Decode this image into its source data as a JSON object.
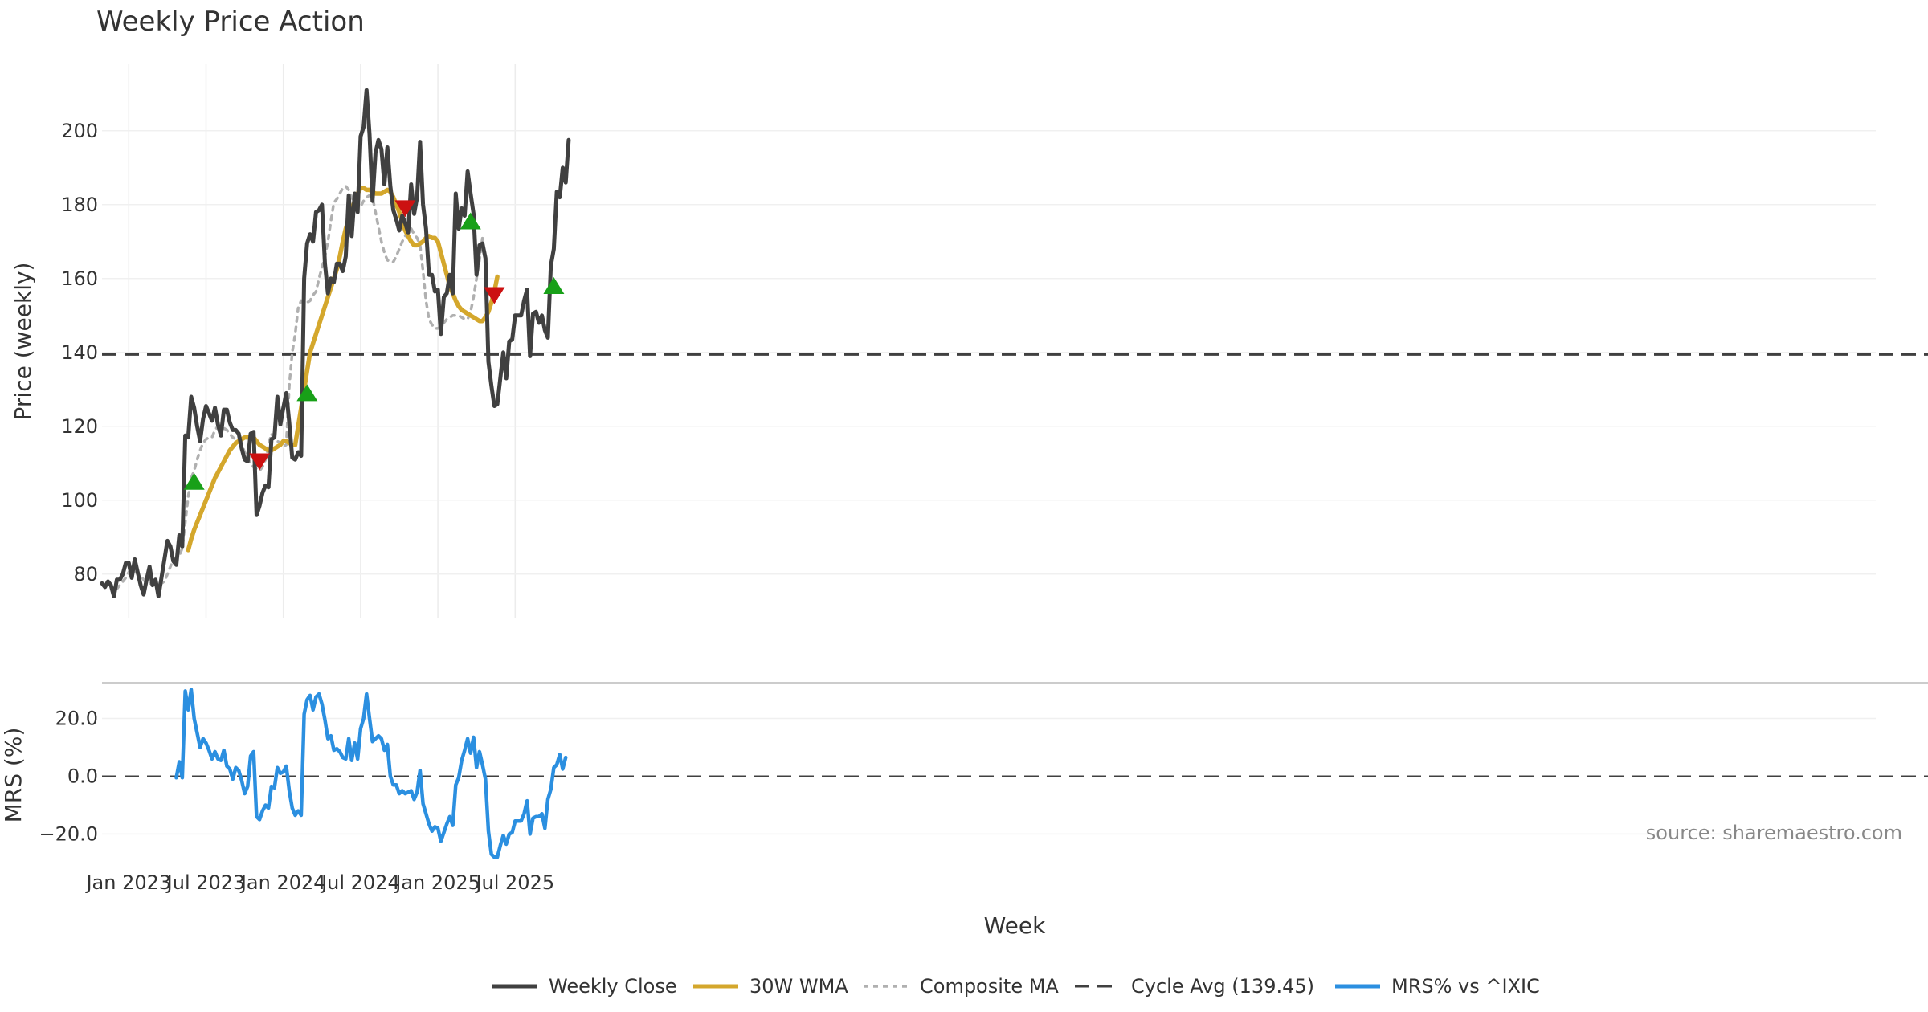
{
  "chart_data": {
    "type": "line",
    "title": "Weekly Price Action",
    "source": "source: sharemaestro.com",
    "price_panel": {
      "ylabel": "Price (weekly)",
      "ylim": [
        68,
        218
      ],
      "yticks": [
        80,
        100,
        120,
        140,
        160,
        180,
        200
      ],
      "cycle_avg": 139.45
    },
    "mrs_panel": {
      "ylabel": "MRS (%)",
      "ylim": [
        -26,
        31
      ],
      "yticks": [
        20.0,
        0.0,
        -20.0
      ],
      "ytick_labels": [
        "20.0",
        "0.0",
        "−20.0"
      ]
    },
    "x_axis": {
      "xlabel": "Week",
      "start": "2022-10-31",
      "tick_weeks": [
        9,
        35,
        61,
        87,
        113,
        139
      ],
      "tick_labels": [
        "Jan 2023",
        "Jul 2023",
        "Jan 2024",
        "Jul 2024",
        "Jan 2025",
        "Jul 2025"
      ]
    },
    "legend": [
      {
        "label": "Weekly Close",
        "color": "#404040",
        "style": "solid"
      },
      {
        "label": "30W WMA",
        "color": "#d4a72c",
        "style": "solid"
      },
      {
        "label": "Composite MA",
        "color": "#b0b0b0",
        "style": "dotted"
      },
      {
        "label": "Cycle Avg (139.45)",
        "color": "#404040",
        "style": "dashed"
      },
      {
        "label": "MRS% vs ^IXIC",
        "color": "#2b8fe0",
        "style": "solid"
      }
    ],
    "series": [
      {
        "name": "Weekly Close",
        "start_week": 0,
        "values": [
          77.5,
          76.5,
          78,
          77,
          74,
          78.5,
          78.5,
          80,
          83,
          83,
          79,
          84,
          80.5,
          77,
          74.5,
          78.5,
          82,
          77,
          78.5,
          74,
          79,
          84,
          89,
          87.5,
          83.5,
          82.5,
          90.5,
          87.5,
          117.5,
          117,
          128,
          125,
          120,
          116,
          122,
          125.5,
          123.5,
          121.5,
          125,
          120.5,
          117.5,
          124.5,
          124.5,
          121,
          119,
          119,
          118,
          114,
          111,
          110.5,
          118,
          118.5,
          96,
          98.5,
          102,
          104,
          103.5,
          116.5,
          117,
          128,
          120.5,
          125,
          129,
          121,
          111.5,
          111,
          113,
          112,
          160,
          169.5,
          172,
          170,
          178,
          178.5,
          180,
          164,
          156,
          160,
          159,
          164,
          164,
          162,
          166,
          182.5,
          171.5,
          183,
          178,
          198.5,
          201,
          211,
          199,
          181,
          194,
          197.5,
          195,
          185.5,
          195.5,
          185,
          178.5,
          176,
          173,
          177,
          175,
          172.5,
          185.5,
          177.5,
          182,
          197,
          180,
          173.5,
          161,
          161,
          156.5,
          157,
          145,
          155,
          156,
          161,
          156,
          183,
          173.5,
          179,
          177,
          189,
          183,
          177.5,
          161,
          169,
          169.5,
          165.5,
          137.5,
          131,
          125.5,
          126,
          133,
          140,
          133,
          143,
          143.5,
          150,
          150,
          150,
          154,
          157,
          139,
          150.5,
          151,
          148,
          150,
          146,
          144,
          163.5,
          168,
          183.5,
          182,
          190,
          186,
          197.5
        ]
      },
      {
        "name": "30W WMA",
        "start_week": 29,
        "values": [
          86.5,
          89.5,
          92,
          94,
          96,
          98,
          100,
          102,
          104,
          106,
          107.5,
          109,
          110.5,
          112,
          113.5,
          114.5,
          115.5,
          116,
          116.5,
          117,
          117,
          117,
          117,
          116,
          115,
          114.5,
          114,
          113.5,
          113.5,
          114,
          114.5,
          115,
          116,
          116,
          115.5,
          115,
          115,
          120,
          125,
          130,
          135,
          140,
          142.5,
          145,
          147.5,
          150,
          152.5,
          155,
          157.5,
          160,
          162.5,
          166,
          170,
          173.5,
          176,
          178.5,
          181,
          183,
          184.5,
          184.5,
          184,
          184,
          183.5,
          183,
          183,
          183,
          183.5,
          184,
          183.5,
          182,
          180,
          178,
          175.5,
          173,
          171.5,
          170,
          169,
          169,
          169.5,
          170,
          171,
          171.5,
          171,
          171,
          170,
          167,
          164,
          161,
          158,
          156,
          154,
          152.5,
          151.5,
          151,
          150.5,
          150,
          149.5,
          149,
          148.5,
          148.5,
          149.5,
          151,
          153.5,
          156.5,
          160.5
        ]
      },
      {
        "name": "Composite MA",
        "start_week": 5,
        "values": [
          76,
          77,
          78,
          79,
          80.5,
          81,
          81,
          80,
          79.5,
          78.5,
          77.5,
          77.5,
          77.5,
          77.5,
          77.5,
          77.5,
          78,
          80,
          82,
          84,
          84.5,
          85,
          87,
          94,
          101,
          106,
          108,
          111,
          113.5,
          115.5,
          116.5,
          117,
          117,
          119,
          120,
          119.5,
          119.5,
          119,
          118,
          117,
          116.5,
          116,
          115,
          113,
          111.5,
          110,
          109,
          108.5,
          108,
          109,
          111,
          115,
          118,
          116.5,
          116,
          115.5,
          114.5,
          115,
          131,
          140,
          145,
          152,
          154,
          153.5,
          153.5,
          154,
          155.5,
          156.5,
          160,
          163,
          166,
          170,
          175.5,
          180.5,
          181.5,
          183,
          184.5,
          185,
          184,
          182,
          180,
          179.5,
          179.5,
          181,
          182,
          182.5,
          182,
          178,
          174,
          170,
          167,
          165,
          164.5,
          164.5,
          166,
          168,
          170,
          171.5,
          173,
          173.5,
          172,
          171,
          169,
          162,
          154,
          149,
          147.5,
          146.5,
          146.5,
          147,
          148,
          149,
          149.5,
          150,
          150,
          150,
          149.5,
          149,
          149,
          151,
          155,
          160,
          165,
          171
        ]
      },
      {
        "name": "MRS% vs ^IXIC",
        "start_week": 25,
        "values": [
          -0.5,
          5,
          -0.5,
          29.5,
          23,
          30,
          20,
          15,
          10,
          13,
          11.5,
          9,
          6,
          8.5,
          6,
          5.5,
          9,
          3.5,
          2.5,
          -1,
          3,
          2,
          -1.5,
          -6,
          -3.5,
          7,
          8.5,
          -14,
          -15,
          -12,
          -10,
          -11,
          -3.5,
          -4,
          3,
          1,
          1.5,
          3.5,
          -5,
          -11,
          -13.5,
          -12,
          -13.5,
          21.5,
          26.5,
          28,
          23,
          27.5,
          28.5,
          25,
          19.5,
          13,
          14,
          9,
          9.5,
          8.5,
          6.5,
          6,
          13,
          5.5,
          11.5,
          6,
          16.5,
          20,
          28.5,
          20,
          12,
          13,
          14,
          13,
          9,
          11,
          0,
          -3,
          -3,
          -6,
          -5,
          -6,
          -5.5,
          -5,
          -8,
          -5.5,
          2,
          -9.5,
          -13,
          -16.5,
          -19,
          -17.5,
          -18,
          -22.5,
          -19.5,
          -16.5,
          -14,
          -17,
          -3,
          -0.5,
          5.5,
          9,
          13,
          8,
          13.5,
          3,
          8.5,
          4,
          -1,
          -19,
          -27,
          -28,
          -28,
          -24,
          -20.5,
          -23.5,
          -20,
          -19.5,
          -15.5,
          -15.5,
          -15.5,
          -13,
          -8.5,
          -20,
          -14.5,
          -14,
          -14,
          -13,
          -18,
          -8,
          -4.5,
          3,
          4,
          7.5,
          2.5,
          6.5
        ]
      }
    ],
    "signals": [
      {
        "type": "buy",
        "week": 31,
        "value": 105
      },
      {
        "type": "sell",
        "week": 53,
        "value": 110.5
      },
      {
        "type": "buy",
        "week": 69,
        "value": 129
      },
      {
        "type": "sell",
        "week": 102,
        "value": 179
      },
      {
        "type": "buy",
        "week": 124,
        "value": 175.5
      },
      {
        "type": "sell",
        "week": 132,
        "value": 155.5
      },
      {
        "type": "buy",
        "week": 152,
        "value": 158
      }
    ]
  }
}
